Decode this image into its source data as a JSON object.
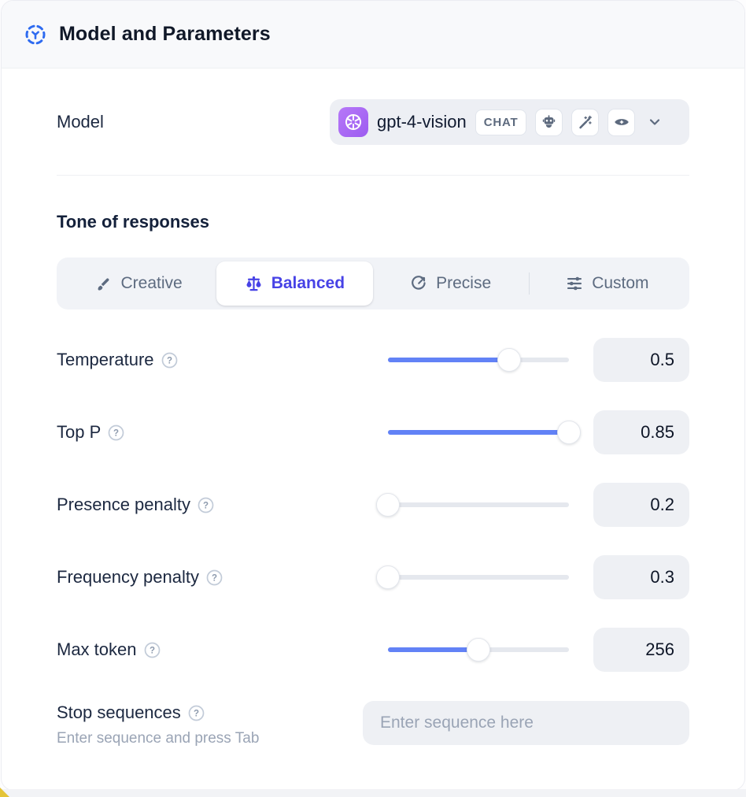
{
  "colors": {
    "accent_blue": "#6282f6",
    "selected_indigo": "#4742e6",
    "header_icon_blue": "#2e6bf0",
    "provider_purple": "#a767f5"
  },
  "header": {
    "title": "Model and Parameters",
    "icon": "model-hub-icon"
  },
  "model": {
    "label": "Model",
    "selected_model": "gpt-4-vision",
    "type_badge": "CHAT",
    "provider_icon": "openai-logo",
    "capability_icons": [
      "robot-icon",
      "magic-wand-icon",
      "eye-icon"
    ]
  },
  "tone": {
    "heading": "Tone of responses",
    "options": [
      {
        "label": "Creative",
        "icon": "paintbrush-icon",
        "selected": false
      },
      {
        "label": "Balanced",
        "icon": "balance-scale-icon",
        "selected": true
      },
      {
        "label": "Precise",
        "icon": "target-icon",
        "selected": false
      },
      {
        "label": "Custom",
        "icon": "sliders-icon",
        "selected": false
      }
    ]
  },
  "parameters": [
    {
      "label": "Temperature",
      "value": "0.5",
      "slider_percent": 67
    },
    {
      "label": "Top P",
      "value": "0.85",
      "slider_percent": 100
    },
    {
      "label": "Presence penalty",
      "value": "0.2",
      "slider_percent": 0
    },
    {
      "label": "Frequency penalty",
      "value": "0.3",
      "slider_percent": 0
    },
    {
      "label": "Max token",
      "value": "256",
      "slider_percent": 50
    }
  ],
  "stop_sequences": {
    "label": "Stop sequences",
    "helper": "Enter sequence and press Tab",
    "placeholder": "Enter sequence here"
  }
}
